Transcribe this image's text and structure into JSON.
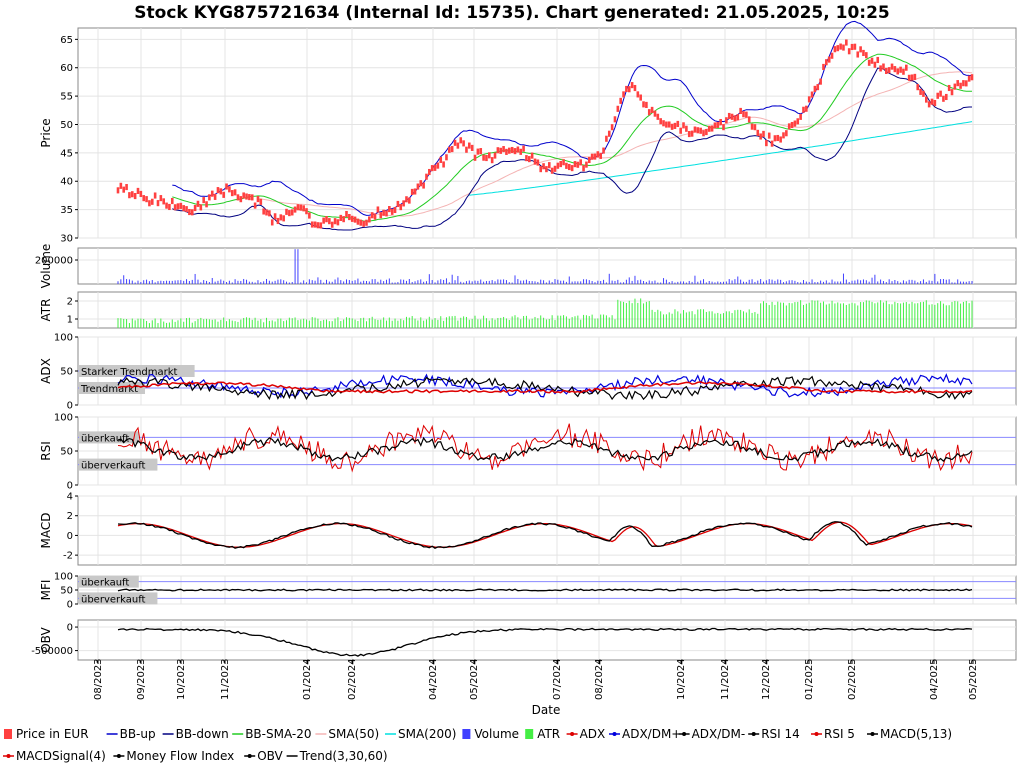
{
  "chart_data": {
    "type": "line",
    "title": "Stock KYG875721634 (Internal Id: 15735). Chart generated: 21.05.2025, 10:25",
    "xlabel": "Date",
    "x_ticks": [
      "08/2023",
      "09/2023",
      "10/2023",
      "11/2023",
      "01/2024",
      "02/2024",
      "04/2024",
      "05/2024",
      "07/2024",
      "08/2024",
      "10/2024",
      "11/2024",
      "12/2024",
      "01/2025",
      "02/2025",
      "04/2025",
      "05/2025"
    ],
    "panels": [
      {
        "id": "price",
        "ylabel": "Price",
        "ylim": [
          30,
          67
        ],
        "yticks": [
          "30",
          "35",
          "40",
          "45",
          "50",
          "55",
          "60",
          "65"
        ],
        "series": [
          {
            "name": "Price in EUR",
            "color": "#ff4040",
            "points": [
              [
                0.05,
                39
              ],
              [
                0.07,
                38
              ],
              [
                0.09,
                37
              ],
              [
                0.11,
                36.5
              ],
              [
                0.13,
                36
              ],
              [
                0.15,
                35
              ],
              [
                0.17,
                36
              ],
              [
                0.19,
                38
              ],
              [
                0.21,
                38.5
              ],
              [
                0.23,
                37
              ],
              [
                0.25,
                36
              ],
              [
                0.27,
                33
              ],
              [
                0.29,
                34
              ],
              [
                0.31,
                35
              ],
              [
                0.33,
                32
              ],
              [
                0.35,
                33
              ],
              [
                0.37,
                34
              ],
              [
                0.39,
                32
              ],
              [
                0.41,
                34
              ],
              [
                0.43,
                35
              ],
              [
                0.45,
                36
              ],
              [
                0.47,
                38
              ],
              [
                0.49,
                42
              ],
              [
                0.51,
                44
              ],
              [
                0.53,
                47
              ],
              [
                0.55,
                45
              ],
              [
                0.57,
                44
              ],
              [
                0.59,
                45
              ],
              [
                0.61,
                46
              ],
              [
                0.63,
                44
              ],
              [
                0.65,
                42
              ],
              [
                0.67,
                43
              ],
              [
                0.69,
                42.5
              ],
              [
                0.71,
                43
              ],
              [
                0.73,
                45
              ],
              [
                0.75,
                52
              ],
              [
                0.77,
                57
              ],
              [
                0.79,
                53
              ],
              [
                0.81,
                51
              ],
              [
                0.83,
                50
              ],
              [
                0.85,
                49
              ],
              [
                0.87,
                48.5
              ],
              [
                0.89,
                49.5
              ],
              [
                0.91,
                51
              ],
              [
                0.93,
                52
              ],
              [
                0.95,
                48
              ],
              [
                0.97,
                47
              ],
              [
                0.99,
                49
              ],
              [
                1.01,
                52
              ],
              [
                1.03,
                56
              ],
              [
                1.05,
                62
              ],
              [
                1.07,
                64
              ],
              [
                1.09,
                63
              ],
              [
                1.11,
                61
              ],
              [
                1.13,
                60
              ],
              [
                1.15,
                60
              ],
              [
                1.17,
                58
              ],
              [
                1.19,
                54
              ],
              [
                1.21,
                55
              ],
              [
                1.23,
                57
              ],
              [
                1.25,
                58
              ]
            ]
          },
          {
            "name": "BB-up",
            "color": "#0000cc"
          },
          {
            "name": "BB-down",
            "color": "#000080"
          },
          {
            "name": "BB-SMA-20",
            "color": "#22cc22"
          },
          {
            "name": "SMA(50)",
            "color": "#f4b4b4"
          },
          {
            "name": "SMA(200)",
            "color": "#00e0e0"
          }
        ]
      },
      {
        "id": "volume",
        "ylabel": "Volume",
        "ylim": [
          0,
          300000
        ],
        "yticks": [
          "200000"
        ],
        "series": [
          {
            "name": "Volume",
            "color": "#4040ff"
          }
        ]
      },
      {
        "id": "atr",
        "ylabel": "ATR",
        "ylim": [
          0.5,
          2.5
        ],
        "yticks": [
          "1",
          "2"
        ],
        "series": [
          {
            "name": "ATR",
            "color": "#44ee44"
          }
        ]
      },
      {
        "id": "adx",
        "ylabel": "ADX",
        "ylim": [
          0,
          100
        ],
        "yticks": [
          "0",
          "50",
          "100"
        ],
        "zones": [
          {
            "label": "Starker Trendmarkt",
            "value": 50
          },
          {
            "label": "Trendmarkt",
            "value": 25
          }
        ],
        "series": [
          {
            "name": "ADX",
            "color": "#dd0000"
          },
          {
            "name": "ADX/DM+",
            "color": "#0000dd"
          },
          {
            "name": "ADX/DM-",
            "color": "#000000"
          }
        ]
      },
      {
        "id": "rsi",
        "ylabel": "RSI",
        "ylim": [
          0,
          100
        ],
        "yticks": [
          "0",
          "50",
          "100"
        ],
        "zones": [
          {
            "label": "überkauft",
            "value": 70
          },
          {
            "label": "überverkauft",
            "value": 30
          }
        ],
        "series": [
          {
            "name": "RSI 14",
            "color": "#000000"
          },
          {
            "name": "RSI 5",
            "color": "#dd0000"
          }
        ]
      },
      {
        "id": "macd",
        "ylabel": "MACD",
        "ylim": [
          -3,
          4
        ],
        "yticks": [
          "-2",
          "0",
          "2",
          "4"
        ],
        "series": [
          {
            "name": "MACD(5,13)",
            "color": "#000000"
          },
          {
            "name": "MACDSignal(4)",
            "color": "#dd0000"
          }
        ]
      },
      {
        "id": "mfi",
        "ylabel": "MFI",
        "ylim": [
          0,
          100
        ],
        "yticks": [
          "0",
          "50",
          "100"
        ],
        "zones": [
          {
            "label": "überkauft",
            "value": 80
          },
          {
            "label": "überverkauft",
            "value": 20
          }
        ],
        "series": [
          {
            "name": "Money Flow Index",
            "color": "#000000"
          }
        ]
      },
      {
        "id": "obv",
        "ylabel": "OBV",
        "ylim": [
          -700000,
          150000
        ],
        "yticks": [
          "0",
          "-500000"
        ],
        "series": [
          {
            "name": "OBV",
            "color": "#000000"
          }
        ]
      }
    ],
    "legend": [
      {
        "label": "Price in EUR",
        "color": "#ff4040",
        "kind": "box"
      },
      {
        "label": "BB-up",
        "color": "#0000cc",
        "kind": "line"
      },
      {
        "label": "BB-down",
        "color": "#000080",
        "kind": "line"
      },
      {
        "label": "BB-SMA-20",
        "color": "#22cc22",
        "kind": "line"
      },
      {
        "label": "SMA(50)",
        "color": "#f4b4b4",
        "kind": "line"
      },
      {
        "label": "SMA(200)",
        "color": "#00e0e0",
        "kind": "line"
      },
      {
        "label": "Volume",
        "color": "#4040ff",
        "kind": "box"
      },
      {
        "label": "ATR",
        "color": "#44ee44",
        "kind": "box"
      },
      {
        "label": "ADX",
        "color": "#dd0000",
        "kind": "marker"
      },
      {
        "label": "ADX/DM+",
        "color": "#0000dd",
        "kind": "marker"
      },
      {
        "label": "ADX/DM-",
        "color": "#000000",
        "kind": "marker"
      },
      {
        "label": "RSI 14",
        "color": "#000000",
        "kind": "marker"
      },
      {
        "label": "RSI 5",
        "color": "#dd0000",
        "kind": "marker"
      },
      {
        "label": "MACD(5,13)",
        "color": "#000000",
        "kind": "marker"
      },
      {
        "label": "MACDSignal(4)",
        "color": "#dd0000",
        "kind": "marker"
      },
      {
        "label": "Money Flow Index",
        "color": "#000000",
        "kind": "marker"
      },
      {
        "label": "OBV",
        "color": "#000000",
        "kind": "marker"
      },
      {
        "label": "Trend(3,30,60)",
        "color": "#000000",
        "kind": "line"
      }
    ]
  }
}
